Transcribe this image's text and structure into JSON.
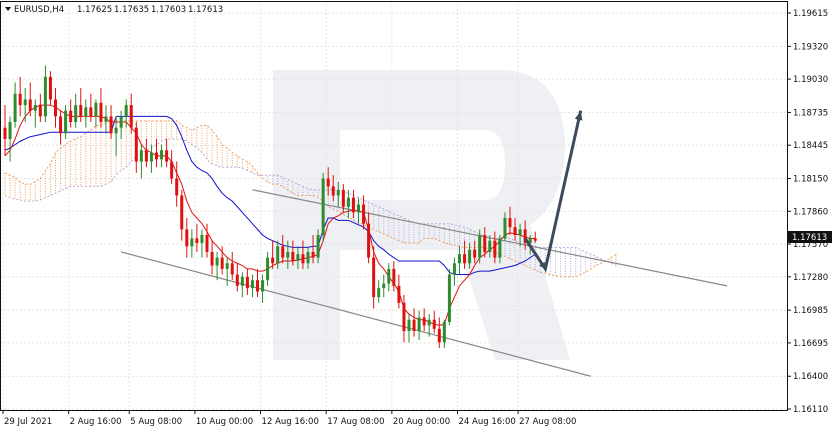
{
  "header": {
    "symbol": "EURUSD,H4",
    "open": "1.17625",
    "high": "1.17635",
    "low": "1.17603",
    "close": "1.17613"
  },
  "price_tag": "1.17613",
  "colors": {
    "bull": "#2e8b2e",
    "bear": "#e01010",
    "tenkan": "#e01010",
    "kijun": "#1010d0",
    "cloud_bull_edge": "#f0a060",
    "cloud_bear_edge": "#b8a8d8",
    "channel": "#888888",
    "arrow": "#3c4a5c",
    "watermark": "#eef0f4"
  },
  "chart_data": {
    "type": "candlestick",
    "title": "EURUSD,H4",
    "y_ticks": [
      "1.19615",
      "1.19320",
      "1.19030",
      "1.18735",
      "1.18445",
      "1.18150",
      "1.17860",
      "1.17570",
      "1.17280",
      "1.16985",
      "1.16695",
      "1.16400",
      "1.16110"
    ],
    "ylim": [
      1.1611,
      1.19615
    ],
    "x_ticks": [
      "29 Jul 2021",
      "2 Aug 16:00",
      "5 Aug 08:00",
      "10 Aug 00:00",
      "12 Aug 16:00",
      "17 Aug 08:00",
      "20 Aug 00:00",
      "24 Aug 16:00",
      "27 Aug 08:00"
    ],
    "grid": true,
    "candles": [
      [
        1.186,
        1.188,
        1.1835,
        1.185
      ],
      [
        1.185,
        1.187,
        1.183,
        1.1865
      ],
      [
        1.1865,
        1.19,
        1.186,
        1.189
      ],
      [
        1.189,
        1.1905,
        1.187,
        1.188
      ],
      [
        1.188,
        1.1895,
        1.1865,
        1.1885
      ],
      [
        1.1885,
        1.19,
        1.187,
        1.1875
      ],
      [
        1.1875,
        1.1885,
        1.186,
        1.188
      ],
      [
        1.188,
        1.189,
        1.1865,
        1.187
      ],
      [
        1.187,
        1.1915,
        1.1865,
        1.1905
      ],
      [
        1.1905,
        1.191,
        1.188,
        1.1885
      ],
      [
        1.1885,
        1.1895,
        1.186,
        1.187
      ],
      [
        1.187,
        1.1875,
        1.1845,
        1.1855
      ],
      [
        1.1855,
        1.188,
        1.185,
        1.1875
      ],
      [
        1.1875,
        1.1885,
        1.186,
        1.1865
      ],
      [
        1.1865,
        1.189,
        1.186,
        1.188
      ],
      [
        1.188,
        1.1895,
        1.1865,
        1.187
      ],
      [
        1.187,
        1.1885,
        1.186,
        1.1878
      ],
      [
        1.1878,
        1.189,
        1.1865,
        1.187
      ],
      [
        1.187,
        1.1885,
        1.186,
        1.1882
      ],
      [
        1.1882,
        1.1895,
        1.186,
        1.1865
      ],
      [
        1.1865,
        1.188,
        1.1855,
        1.187
      ],
      [
        1.187,
        1.188,
        1.185,
        1.1855
      ],
      [
        1.1855,
        1.187,
        1.1835,
        1.186
      ],
      [
        1.186,
        1.1875,
        1.185,
        1.187
      ],
      [
        1.187,
        1.1885,
        1.186,
        1.188
      ],
      [
        1.188,
        1.189,
        1.1855,
        1.186
      ],
      [
        1.186,
        1.1865,
        1.182,
        1.183
      ],
      [
        1.183,
        1.1845,
        1.1815,
        1.184
      ],
      [
        1.184,
        1.185,
        1.1825,
        1.183
      ],
      [
        1.183,
        1.1845,
        1.182,
        1.1838
      ],
      [
        1.1838,
        1.185,
        1.1825,
        1.1832
      ],
      [
        1.1832,
        1.1845,
        1.1825,
        1.184
      ],
      [
        1.184,
        1.185,
        1.1825,
        1.183
      ],
      [
        1.183,
        1.184,
        1.181,
        1.1815
      ],
      [
        1.1815,
        1.183,
        1.179,
        1.18
      ],
      [
        1.18,
        1.1805,
        1.176,
        1.177
      ],
      [
        1.177,
        1.178,
        1.1745,
        1.1755
      ],
      [
        1.1755,
        1.177,
        1.1745,
        1.1762
      ],
      [
        1.1762,
        1.1775,
        1.175,
        1.1758
      ],
      [
        1.1758,
        1.177,
        1.1745,
        1.1765
      ],
      [
        1.1765,
        1.1775,
        1.1745,
        1.175
      ],
      [
        1.175,
        1.176,
        1.173,
        1.1738
      ],
      [
        1.1738,
        1.175,
        1.1725,
        1.1745
      ],
      [
        1.1745,
        1.1755,
        1.173,
        1.1735
      ],
      [
        1.1735,
        1.1745,
        1.172,
        1.174
      ],
      [
        1.174,
        1.175,
        1.1725,
        1.173
      ],
      [
        1.173,
        1.174,
        1.1715,
        1.172
      ],
      [
        1.172,
        1.1732,
        1.171,
        1.1728
      ],
      [
        1.1728,
        1.1735,
        1.1712,
        1.1718
      ],
      [
        1.1718,
        1.173,
        1.171,
        1.1725
      ],
      [
        1.1725,
        1.1735,
        1.171,
        1.1715
      ],
      [
        1.1715,
        1.173,
        1.1705,
        1.1725
      ],
      [
        1.1725,
        1.175,
        1.172,
        1.1745
      ],
      [
        1.1745,
        1.176,
        1.1735,
        1.174
      ],
      [
        1.174,
        1.176,
        1.1735,
        1.1755
      ],
      [
        1.1755,
        1.1765,
        1.174,
        1.1745
      ],
      [
        1.1745,
        1.176,
        1.1735,
        1.175
      ],
      [
        1.175,
        1.176,
        1.1738,
        1.1742
      ],
      [
        1.1742,
        1.1755,
        1.1735,
        1.1748
      ],
      [
        1.1748,
        1.176,
        1.1735,
        1.174
      ],
      [
        1.174,
        1.1755,
        1.1735,
        1.175
      ],
      [
        1.175,
        1.1765,
        1.174,
        1.1745
      ],
      [
        1.1745,
        1.177,
        1.174,
        1.1765
      ],
      [
        1.1765,
        1.182,
        1.176,
        1.1815
      ],
      [
        1.1815,
        1.1825,
        1.18,
        1.1808
      ],
      [
        1.1808,
        1.1818,
        1.1795,
        1.18
      ],
      [
        1.18,
        1.1812,
        1.179,
        1.1805
      ],
      [
        1.1805,
        1.181,
        1.1785,
        1.179
      ],
      [
        1.179,
        1.1805,
        1.178,
        1.1798
      ],
      [
        1.1798,
        1.1805,
        1.178,
        1.1785
      ],
      [
        1.1785,
        1.1798,
        1.1775,
        1.1792
      ],
      [
        1.1792,
        1.18,
        1.177,
        1.1775
      ],
      [
        1.1775,
        1.1785,
        1.174,
        1.1745
      ],
      [
        1.1745,
        1.1755,
        1.17,
        1.171
      ],
      [
        1.171,
        1.1725,
        1.1705,
        1.1718
      ],
      [
        1.1718,
        1.173,
        1.171,
        1.1722
      ],
      [
        1.1722,
        1.174,
        1.1715,
        1.1735
      ],
      [
        1.1735,
        1.1742,
        1.1715,
        1.172
      ],
      [
        1.172,
        1.173,
        1.17,
        1.1705
      ],
      [
        1.1705,
        1.1712,
        1.167,
        1.168
      ],
      [
        1.168,
        1.1695,
        1.167,
        1.169
      ],
      [
        1.169,
        1.17,
        1.1675,
        1.168
      ],
      [
        1.168,
        1.1698,
        1.1672,
        1.1692
      ],
      [
        1.1692,
        1.17,
        1.168,
        1.1685
      ],
      [
        1.1685,
        1.1695,
        1.1675,
        1.169
      ],
      [
        1.169,
        1.1698,
        1.1678,
        1.1682
      ],
      [
        1.1682,
        1.1692,
        1.1665,
        1.167
      ],
      [
        1.167,
        1.169,
        1.1665,
        1.1688
      ],
      [
        1.1688,
        1.1735,
        1.1685,
        1.173
      ],
      [
        1.173,
        1.1745,
        1.172,
        1.174
      ],
      [
        1.174,
        1.1755,
        1.173,
        1.1748
      ],
      [
        1.1748,
        1.176,
        1.1735,
        1.174
      ],
      [
        1.174,
        1.1758,
        1.1735,
        1.1752
      ],
      [
        1.1752,
        1.176,
        1.174,
        1.1745
      ],
      [
        1.1745,
        1.177,
        1.174,
        1.1765
      ],
      [
        1.1765,
        1.1772,
        1.1745,
        1.175
      ],
      [
        1.175,
        1.1765,
        1.1745,
        1.176
      ],
      [
        1.176,
        1.1768,
        1.174,
        1.1745
      ],
      [
        1.1745,
        1.1765,
        1.174,
        1.1762
      ],
      [
        1.1762,
        1.1785,
        1.176,
        1.178
      ],
      [
        1.178,
        1.179,
        1.1765,
        1.1772
      ],
      [
        1.1772,
        1.178,
        1.176,
        1.1765
      ],
      [
        1.1765,
        1.1775,
        1.1755,
        1.177
      ],
      [
        1.177,
        1.1778,
        1.1752,
        1.1758
      ],
      [
        1.1758,
        1.1765,
        1.1748,
        1.1762
      ],
      [
        1.1762,
        1.1768,
        1.1758,
        1.176
      ]
    ],
    "tenkan": [
      1.1835,
      1.184,
      1.185,
      1.1862,
      1.187,
      1.1875,
      1.1878,
      1.188,
      1.188,
      1.188,
      1.1878,
      1.1875,
      1.1872,
      1.187,
      1.187,
      1.187,
      1.187,
      1.187,
      1.187,
      1.187,
      1.1868,
      1.1865,
      1.1865,
      1.1865,
      1.1865,
      1.186,
      1.1855,
      1.1845,
      1.184,
      1.1838,
      1.1835,
      1.1835,
      1.1835,
      1.183,
      1.182,
      1.181,
      1.1795,
      1.1785,
      1.178,
      1.1775,
      1.1768,
      1.176,
      1.1755,
      1.175,
      1.1745,
      1.1742,
      1.174,
      1.1738,
      1.1735,
      1.1735,
      1.1733,
      1.1733,
      1.1735,
      1.1738,
      1.174,
      1.1742,
      1.1742,
      1.1742,
      1.1743,
      1.1744,
      1.1745,
      1.1746,
      1.1748,
      1.176,
      1.1775,
      1.178,
      1.1782,
      1.1785,
      1.1786,
      1.1787,
      1.1786,
      1.1785,
      1.177,
      1.175,
      1.174,
      1.1735,
      1.1728,
      1.1722,
      1.1715,
      1.17,
      1.1695,
      1.1692,
      1.169,
      1.169,
      1.1688,
      1.1686,
      1.1685,
      1.1686,
      1.17,
      1.171,
      1.172,
      1.1725,
      1.173,
      1.1738,
      1.1745,
      1.1748,
      1.1752,
      1.1755,
      1.176,
      1.1765,
      1.1767,
      1.1766,
      1.1765,
      1.1763,
      1.1762,
      1.1762
    ],
    "kijun": [
      1.184,
      1.1842,
      1.1845,
      1.1848,
      1.185,
      1.1852,
      1.1853,
      1.1854,
      1.1855,
      1.1856,
      1.1856,
      1.1856,
      1.1856,
      1.1856,
      1.1856,
      1.1856,
      1.1856,
      1.1856,
      1.1856,
      1.1856,
      1.1856,
      1.1856,
      1.187,
      1.187,
      1.187,
      1.187,
      1.187,
      1.187,
      1.187,
      1.187,
      1.187,
      1.187,
      1.187,
      1.1868,
      1.1862,
      1.1852,
      1.184,
      1.183,
      1.1825,
      1.1822,
      1.182,
      1.1815,
      1.1808,
      1.1802,
      1.1798,
      1.1795,
      1.179,
      1.1785,
      1.178,
      1.1775,
      1.177,
      1.1765,
      1.1762,
      1.176,
      1.1758,
      1.1756,
      1.1755,
      1.1754,
      1.1754,
      1.1754,
      1.1754,
      1.1755,
      1.1755,
      1.177,
      1.178,
      1.178,
      1.1778,
      1.1778,
      1.1778,
      1.1776,
      1.1774,
      1.1772,
      1.1768,
      1.176,
      1.1755,
      1.1752,
      1.1748,
      1.1745,
      1.1742,
      1.1742,
      1.1742,
      1.1742,
      1.1742,
      1.1742,
      1.1742,
      1.1742,
      1.1742,
      1.1738,
      1.1732,
      1.173,
      1.173,
      1.173,
      1.173,
      1.1732,
      1.1733,
      1.1733,
      1.1733,
      1.1734,
      1.1735,
      1.1736,
      1.1737,
      1.1738,
      1.174,
      1.1742,
      1.1745,
      1.1748
    ],
    "cloud": {
      "senkou_a": [
        1.182,
        1.1818,
        1.1816,
        1.1812,
        1.181,
        1.181,
        1.1812,
        1.1815,
        1.1822,
        1.1828,
        1.1838,
        1.1842,
        1.1845,
        1.1848,
        1.185,
        1.1852,
        1.1855,
        1.1858,
        1.1862,
        1.1862,
        1.1864,
        1.1866,
        1.1866,
        1.1866,
        1.1866,
        1.1866,
        1.1866,
        1.1866,
        1.1866,
        1.1866,
        1.1866,
        1.1866,
        1.1866,
        1.1866,
        1.1866,
        1.1862,
        1.186,
        1.1858,
        1.186,
        1.1862,
        1.1862,
        1.1858,
        1.1852,
        1.1845,
        1.1842,
        1.1838,
        1.1835,
        1.1832,
        1.183,
        1.1826,
        1.182,
        1.1815,
        1.1812,
        1.181,
        1.181,
        1.1808,
        1.1805,
        1.1802,
        1.18,
        1.18,
        1.18,
        1.18,
        1.1798,
        1.1795,
        1.179,
        1.1788,
        1.1786,
        1.1783,
        1.1781,
        1.1778,
        1.1776,
        1.1774,
        1.1772,
        1.177,
        1.1768,
        1.1766,
        1.1764,
        1.1762,
        1.176,
        1.1758,
        1.1758,
        1.1758,
        1.1758,
        1.1762,
        1.1762,
        1.1762,
        1.176,
        1.1758,
        1.1757,
        1.1756,
        1.1755,
        1.1754,
        1.1754,
        1.1754,
        1.1754,
        1.1754,
        1.1752,
        1.175,
        1.1748,
        1.1746,
        1.1744,
        1.1742,
        1.174,
        1.1738,
        1.1736,
        1.1734,
        1.1732,
        1.1731,
        1.173,
        1.1729,
        1.1728,
        1.1728,
        1.1728,
        1.1728,
        1.173,
        1.1732,
        1.1735,
        1.1738,
        1.174,
        1.1742,
        1.1745,
        1.1748
      ],
      "senkou_b": [
        1.18,
        1.1798,
        1.1797,
        1.1796,
        1.1795,
        1.1795,
        1.1795,
        1.1796,
        1.1798,
        1.18,
        1.1802,
        1.1804,
        1.1806,
        1.1808,
        1.1808,
        1.1808,
        1.1808,
        1.1808,
        1.1808,
        1.1808,
        1.181,
        1.1812,
        1.1818,
        1.1822,
        1.1825,
        1.183,
        1.1835,
        1.1838,
        1.184,
        1.1842,
        1.1845,
        1.1848,
        1.185,
        1.185,
        1.185,
        1.185,
        1.1848,
        1.1845,
        1.1842,
        1.1838,
        1.1832,
        1.1828,
        1.1826,
        1.1825,
        1.1825,
        1.1825,
        1.1825,
        1.1824,
        1.1822,
        1.182,
        1.1818,
        1.1818,
        1.1818,
        1.1818,
        1.1818,
        1.1816,
        1.1814,
        1.1812,
        1.181,
        1.1808,
        1.1806,
        1.1805,
        1.1805,
        1.1805,
        1.1805,
        1.1805,
        1.1804,
        1.1803,
        1.1802,
        1.18,
        1.1798,
        1.1796,
        1.1794,
        1.1792,
        1.179,
        1.1788,
        1.1786,
        1.1784,
        1.1782,
        1.178,
        1.1778,
        1.1776,
        1.1775,
        1.1775,
        1.1775,
        1.1775,
        1.1775,
        1.1775,
        1.1775,
        1.1774,
        1.1773,
        1.1772,
        1.177,
        1.1768,
        1.1766,
        1.1764,
        1.1762,
        1.1762,
        1.1762,
        1.1762,
        1.1762,
        1.176,
        1.1758,
        1.1757,
        1.1756,
        1.1755,
        1.1754,
        1.1754,
        1.1754,
        1.1754,
        1.1754,
        1.1754,
        1.1754,
        1.1754,
        1.1752,
        1.175,
        1.1748,
        1.1746,
        1.1744,
        1.1742,
        1.174,
        1.1738
      ]
    },
    "channel": {
      "upper": [
        [
          1.1805,
          49
        ],
        [
          1.172,
          143
        ]
      ],
      "lower": [
        [
          1.175,
          23
        ],
        [
          1.164,
          116
        ]
      ]
    },
    "forecast_arrow": [
      [
        1.1762,
        103
      ],
      [
        1.1735,
        107
      ],
      [
        1.1875,
        114
      ]
    ]
  }
}
